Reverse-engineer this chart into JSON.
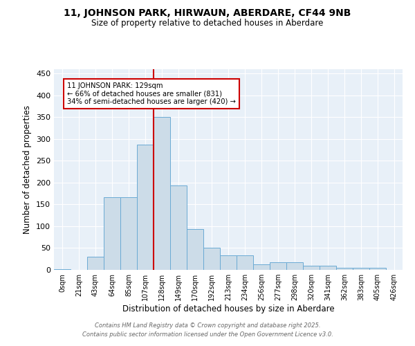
{
  "title": "11, JOHNSON PARK, HIRWAUN, ABERDARE, CF44 9NB",
  "subtitle": "Size of property relative to detached houses in Aberdare",
  "xlabel": "Distribution of detached houses by size in Aberdare",
  "ylabel": "Number of detached properties",
  "bar_labels": [
    "0sqm",
    "21sqm",
    "43sqm",
    "64sqm",
    "85sqm",
    "107sqm",
    "128sqm",
    "149sqm",
    "170sqm",
    "192sqm",
    "213sqm",
    "234sqm",
    "256sqm",
    "277sqm",
    "298sqm",
    "320sqm",
    "341sqm",
    "362sqm",
    "383sqm",
    "405sqm",
    "426sqm"
  ],
  "bar_values": [
    2,
    0,
    30,
    166,
    166,
    287,
    350,
    193,
    93,
    50,
    33,
    33,
    12,
    18,
    18,
    9,
    9,
    5,
    5,
    5,
    0
  ],
  "bar_color": "#ccdce8",
  "bar_edge_color": "#6aaad4",
  "vline_index": 6,
  "vline_color": "#cc0000",
  "annotation_title": "11 JOHNSON PARK: 129sqm",
  "annotation_line1": "← 66% of detached houses are smaller (831)",
  "annotation_line2": "34% of semi-detached houses are larger (420) →",
  "annotation_box_color": "#cc0000",
  "ylim": [
    0,
    460
  ],
  "yticks": [
    0,
    50,
    100,
    150,
    200,
    250,
    300,
    350,
    400,
    450
  ],
  "footer1": "Contains HM Land Registry data © Crown copyright and database right 2025.",
  "footer2": "Contains public sector information licensed under the Open Government Licence v3.0.",
  "bg_color": "#e8f0f8",
  "fig_bg_color": "#ffffff"
}
